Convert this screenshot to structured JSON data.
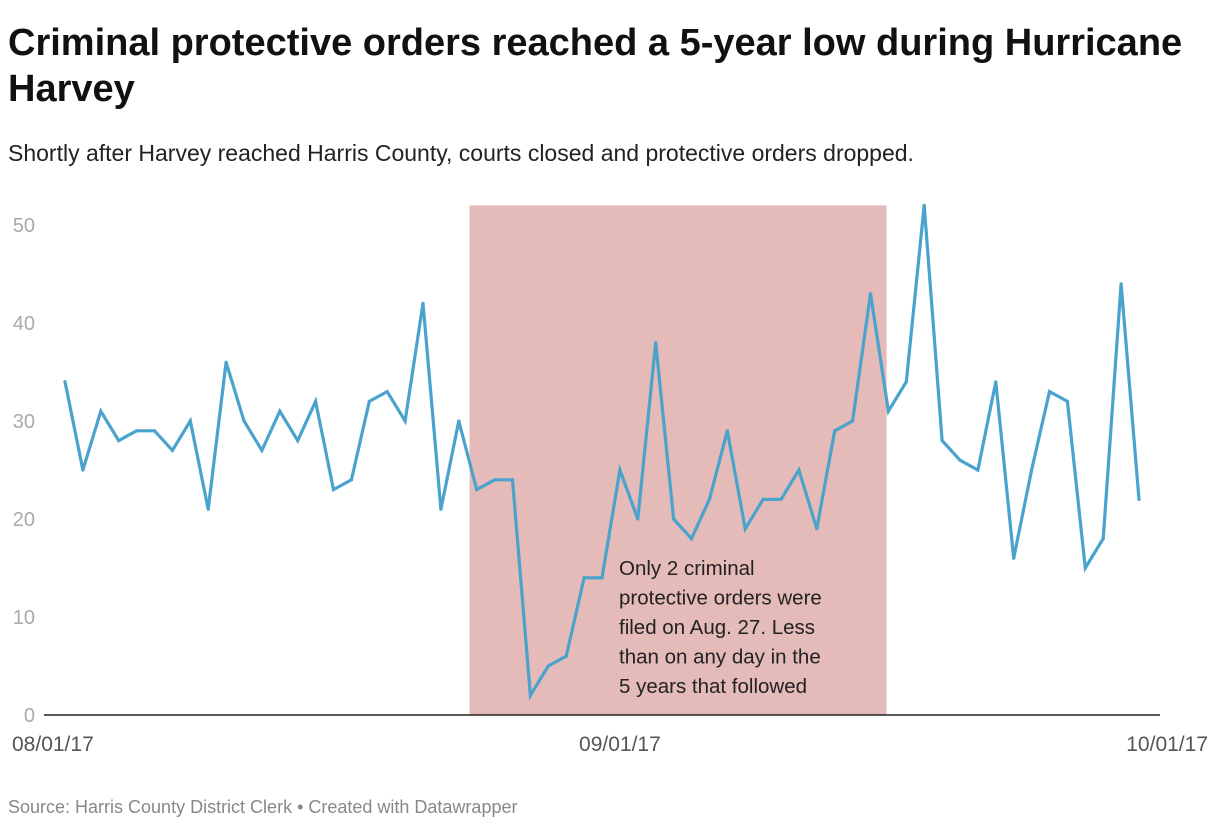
{
  "header": {
    "title": "Criminal protective orders reached a 5-year low during Hurricane Harvey",
    "subtitle": "Shortly after Harvey reached Harris County, courts closed and protective orders dropped."
  },
  "footer": {
    "source": "Source: Harris County District Clerk • Created with Datawrapper"
  },
  "colors": {
    "line": "#4aa3cc",
    "highlight": "#e4bbb9",
    "axis": "#222222"
  },
  "chart_data": {
    "type": "line",
    "title": "Criminal protective orders reached a 5-year low during Hurricane Harvey",
    "xlabel": "",
    "ylabel": "",
    "x_start": "2017-08-01",
    "x_end": "2017-09-30",
    "ylim": [
      0,
      52
    ],
    "grid": false,
    "y_ticks": [
      "0",
      "10",
      "20",
      "30",
      "40",
      "50"
    ],
    "x_ticks": [
      {
        "label": "08/01/17",
        "day": 0
      },
      {
        "label": "09/01/17",
        "day": 31
      },
      {
        "label": "10/01/17",
        "day": 61
      }
    ],
    "series": [
      {
        "name": "Criminal protective orders",
        "values": [
          34,
          25,
          31,
          28,
          29,
          29,
          27,
          30,
          21,
          36,
          30,
          27,
          31,
          28,
          32,
          23,
          24,
          32,
          33,
          30,
          42,
          21,
          30,
          23,
          24,
          24,
          2,
          5,
          6,
          14,
          14,
          25,
          20,
          38,
          20,
          18,
          22,
          29,
          19,
          22,
          22,
          25,
          19,
          29,
          30,
          43,
          31,
          34,
          52,
          28,
          26,
          25,
          34,
          16,
          25,
          33,
          32,
          15,
          18,
          44,
          22
        ]
      }
    ],
    "highlight_range_days": [
      22.6,
      45.9
    ],
    "annotation": {
      "lines": [
        "Only 2 criminal",
        "protective orders were",
        "filed on Aug. 27. Less",
        "than on any day in the",
        "5 years that followed"
      ]
    }
  }
}
